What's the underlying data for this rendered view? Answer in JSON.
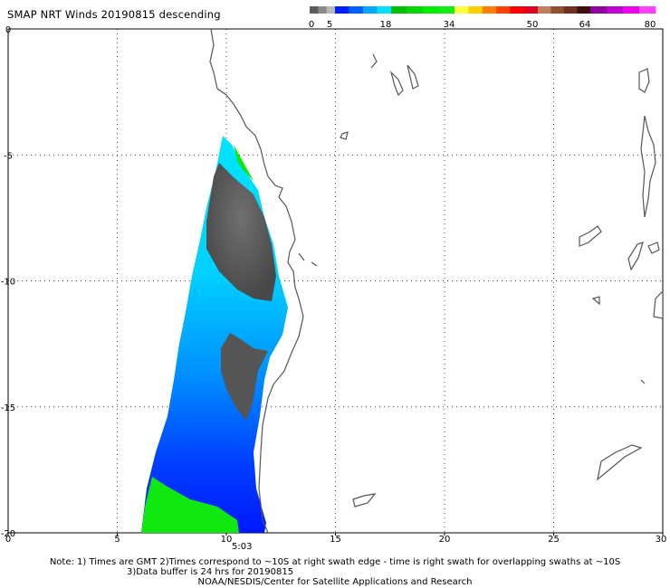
{
  "header": {
    "title": "SMAP NRT Winds  20190815 descending"
  },
  "color_scale": {
    "labels": [
      "0",
      "5",
      "18",
      "34",
      "50",
      "64",
      "80"
    ],
    "segments": [
      {
        "from": 0,
        "to": 5,
        "colors": [
          "#5c5c5c",
          "#8a8a8a",
          "#b9b9b9"
        ]
      },
      {
        "from": 5,
        "to": 18,
        "colors": [
          "#0020ff",
          "#0060ff",
          "#00a8ff",
          "#00e0ff"
        ]
      },
      {
        "from": 18,
        "to": 34,
        "colors": [
          "#00c000",
          "#00d800",
          "#00ee00",
          "#10f010"
        ]
      },
      {
        "from": 34,
        "to": 50,
        "colors": [
          "#ffff40",
          "#ffd000",
          "#ff8000",
          "#ff4000",
          "#ff0000",
          "#e00020"
        ]
      },
      {
        "from": 50,
        "to": 64,
        "colors": [
          "#c08060",
          "#905030",
          "#703020",
          "#401010"
        ]
      },
      {
        "from": 64,
        "to": 80,
        "colors": [
          "#9000a0",
          "#c000d0",
          "#f000f0",
          "#ff40ff"
        ]
      }
    ]
  },
  "map_data": {
    "lon_range": [
      0,
      30
    ],
    "lat_range": [
      -20,
      0
    ],
    "x_ticks": [
      "0",
      "5",
      "10",
      "15",
      "20",
      "25",
      "30"
    ],
    "y_ticks": [
      "0",
      "-5",
      "-10",
      "-15",
      "-20"
    ],
    "time_label": "5:03",
    "swath_regions": [
      {
        "name": "light-blue-wind",
        "color": "#00e4ff"
      },
      {
        "name": "blue-wind",
        "color": "#0058ff"
      },
      {
        "name": "dark-blue-wind",
        "color": "#0018ff"
      },
      {
        "name": "green-wind",
        "color": "#10e810"
      },
      {
        "name": "dark-gray-low-wind",
        "color": "#555555"
      }
    ]
  },
  "footer": {
    "note1": "Note: 1) Times are GMT 2)Times correspond to ~10S at right swath edge - time is right swath for overlapping swaths at ~10S",
    "note2": "3)Data buffer is 24 hrs for 20190815",
    "credit": "NOAA/NESDIS/Center for Satellite Applications and Research"
  }
}
